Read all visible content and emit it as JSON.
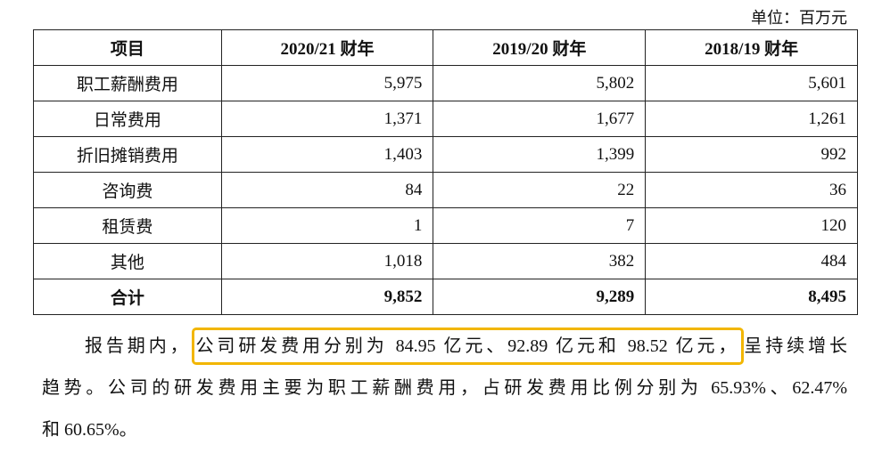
{
  "unit": "单位：百万元",
  "table": {
    "header": [
      "项目",
      "2020/21 财年",
      "2019/20 财年",
      "2018/19 财年"
    ],
    "rows": [
      [
        "职工薪酬费用",
        "5,975",
        "5,802",
        "5,601"
      ],
      [
        "日常费用",
        "1,371",
        "1,677",
        "1,261"
      ],
      [
        "折旧摊销费用",
        "1,403",
        "1,399",
        "992"
      ],
      [
        "咨询费",
        "84",
        "22",
        "36"
      ],
      [
        "租赁费",
        "1",
        "7",
        "120"
      ],
      [
        "其他",
        "1,018",
        "382",
        "484"
      ],
      [
        "合计",
        "9,852",
        "9,289",
        "8,495"
      ]
    ]
  },
  "paragraph": {
    "line1": {
      "before": "报告期内，",
      "highlight": "公司研发费用分别为 84.95 亿元、92.89 亿元和 98.52 亿元，",
      "after": "呈持续增长"
    },
    "line2": "趋势。公司的研发费用主要为职工薪酬费用，占研发费用比例分别为 65.93%、62.47%",
    "line3": "和 60.65%。"
  }
}
